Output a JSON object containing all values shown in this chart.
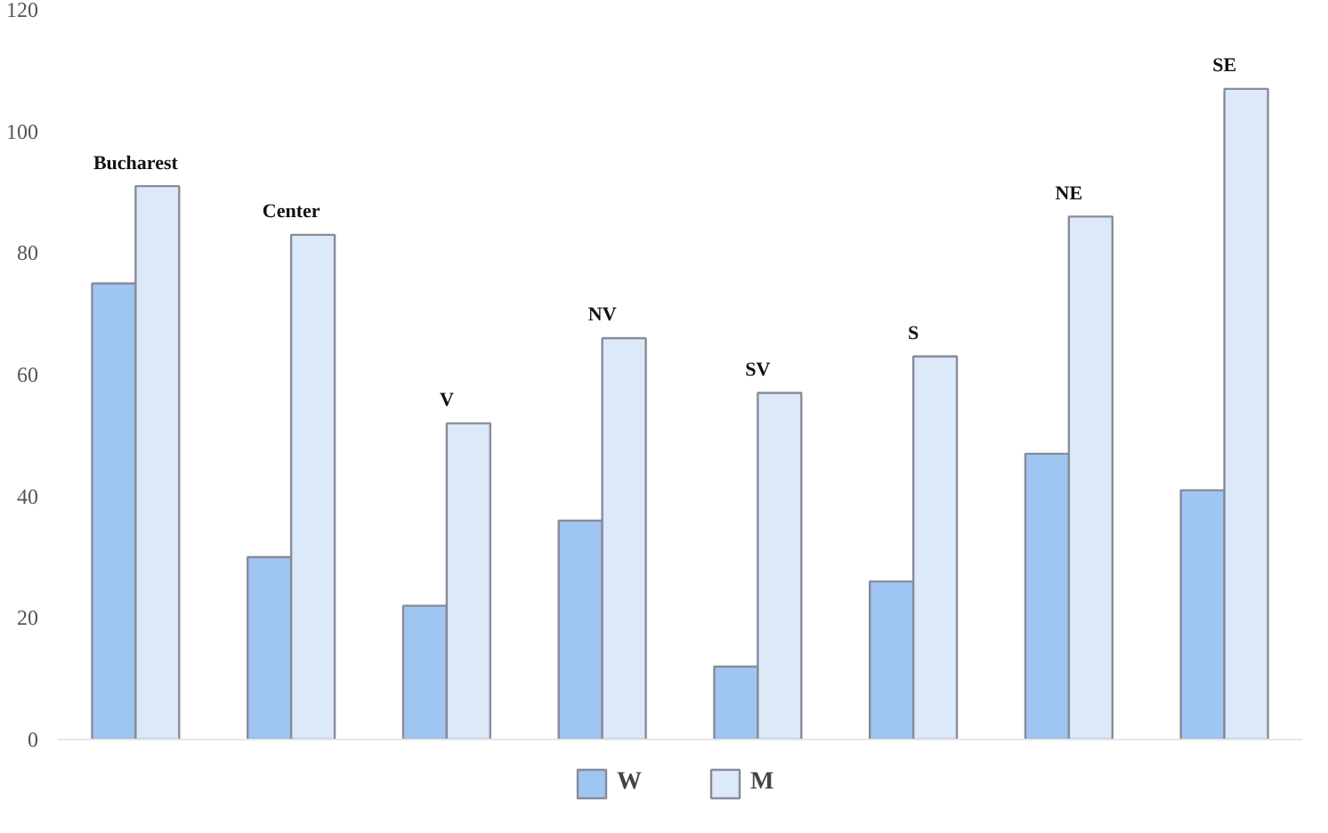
{
  "chart_data": {
    "type": "bar",
    "categories": [
      "Bucharest",
      "Center",
      "V",
      "NV",
      "SV",
      "S",
      "NE",
      "SE"
    ],
    "series": [
      {
        "name": "W",
        "color": "#9fc6f2",
        "values": [
          75,
          30,
          22,
          36,
          12,
          26,
          47,
          41
        ]
      },
      {
        "name": "M",
        "color": "#dce9f8",
        "values": [
          91,
          83,
          52,
          66,
          57,
          63,
          86,
          107
        ]
      }
    ],
    "ylim": [
      0,
      120
    ],
    "yticks": [
      0,
      20,
      40,
      60,
      80,
      100,
      120
    ],
    "grid": false,
    "legend": "bottom",
    "tick_labels": "y"
  }
}
